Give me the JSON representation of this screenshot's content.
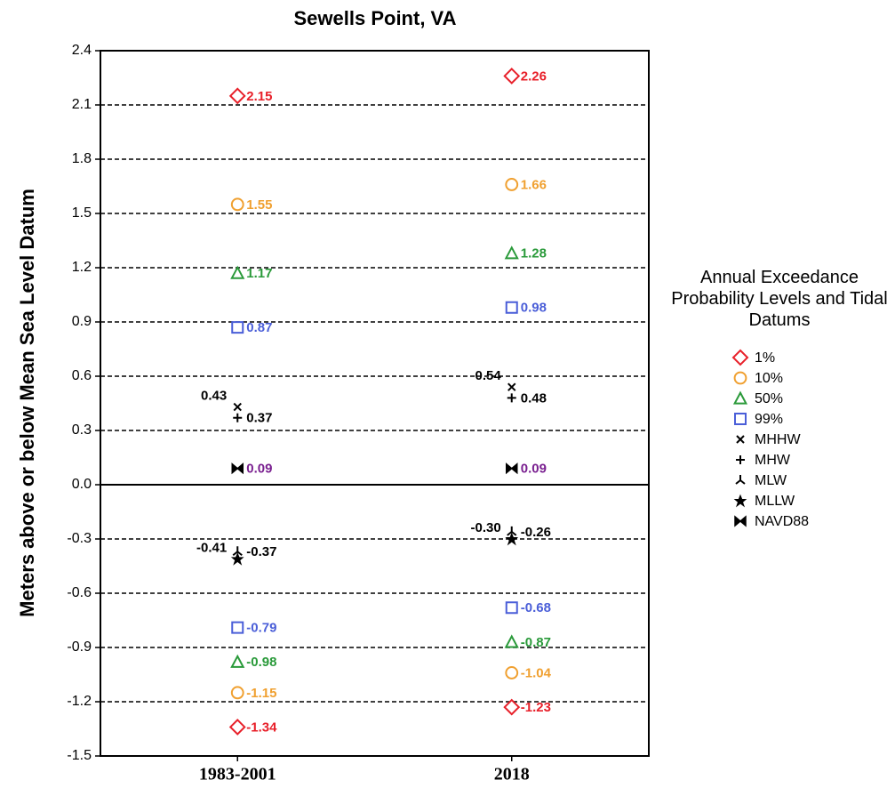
{
  "chart_data": {
    "type": "dot",
    "title": "Sewells Point, VA",
    "y_label": "Meters above or below Mean Sea Level Datum",
    "categories": [
      "1983-2001",
      "2018"
    ],
    "ylim": [
      -1.5,
      2.4
    ],
    "yticks": [
      -1.5,
      -1.2,
      -0.9,
      -0.6,
      -0.3,
      {
        "value": 0,
        "label": "0.0"
      },
      0.3,
      0.6,
      0.9,
      1.2,
      1.5,
      1.8,
      2.1,
      2.4
    ],
    "grid": true,
    "legend_title": "Annual Exceedance Probability Levels and Tidal Datums",
    "legend": "right",
    "series": [
      {
        "name": "1%",
        "color": "#e8202a",
        "marker": "diamond",
        "values": [
          [
            2.15,
            -1.34
          ],
          [
            2.26,
            -1.23
          ]
        ]
      },
      {
        "name": "10%",
        "color": "#f0a030",
        "marker": "circle",
        "values": [
          [
            1.55,
            -1.15
          ],
          [
            1.66,
            -1.04
          ]
        ]
      },
      {
        "name": "50%",
        "color": "#2a9a3a",
        "marker": "triangle",
        "values": [
          [
            1.17,
            -0.98
          ],
          [
            1.28,
            -0.87
          ]
        ]
      },
      {
        "name": "99%",
        "color": "#4a5ed8",
        "marker": "square",
        "values": [
          [
            0.87,
            -0.79
          ],
          [
            0.98,
            -0.68
          ]
        ]
      },
      {
        "name": "MHHW",
        "color": "#000000",
        "marker": "x",
        "label_side": "left",
        "values": [
          [
            0.43
          ],
          [
            0.54
          ]
        ]
      },
      {
        "name": "MHW",
        "color": "#000000",
        "marker": "plus",
        "values": [
          [
            0.37
          ],
          [
            0.48
          ]
        ]
      },
      {
        "name": "MLW",
        "color": "#000000",
        "marker": "tri",
        "values": [
          [
            -0.37
          ],
          [
            -0.26
          ]
        ]
      },
      {
        "name": "MLLW",
        "color": "#000000",
        "marker": "star",
        "label_side": "left",
        "values": [
          [
            -0.41
          ],
          [
            -0.3
          ]
        ],
        "value_labels": [
          [
            "-0.41"
          ],
          [
            "-0.30"
          ]
        ]
      },
      {
        "name": "NAVD88",
        "color": "#000000",
        "label_color": "#7a2090",
        "marker": "bowtie",
        "values": [
          [
            0.09
          ],
          [
            0.09
          ]
        ]
      }
    ]
  }
}
